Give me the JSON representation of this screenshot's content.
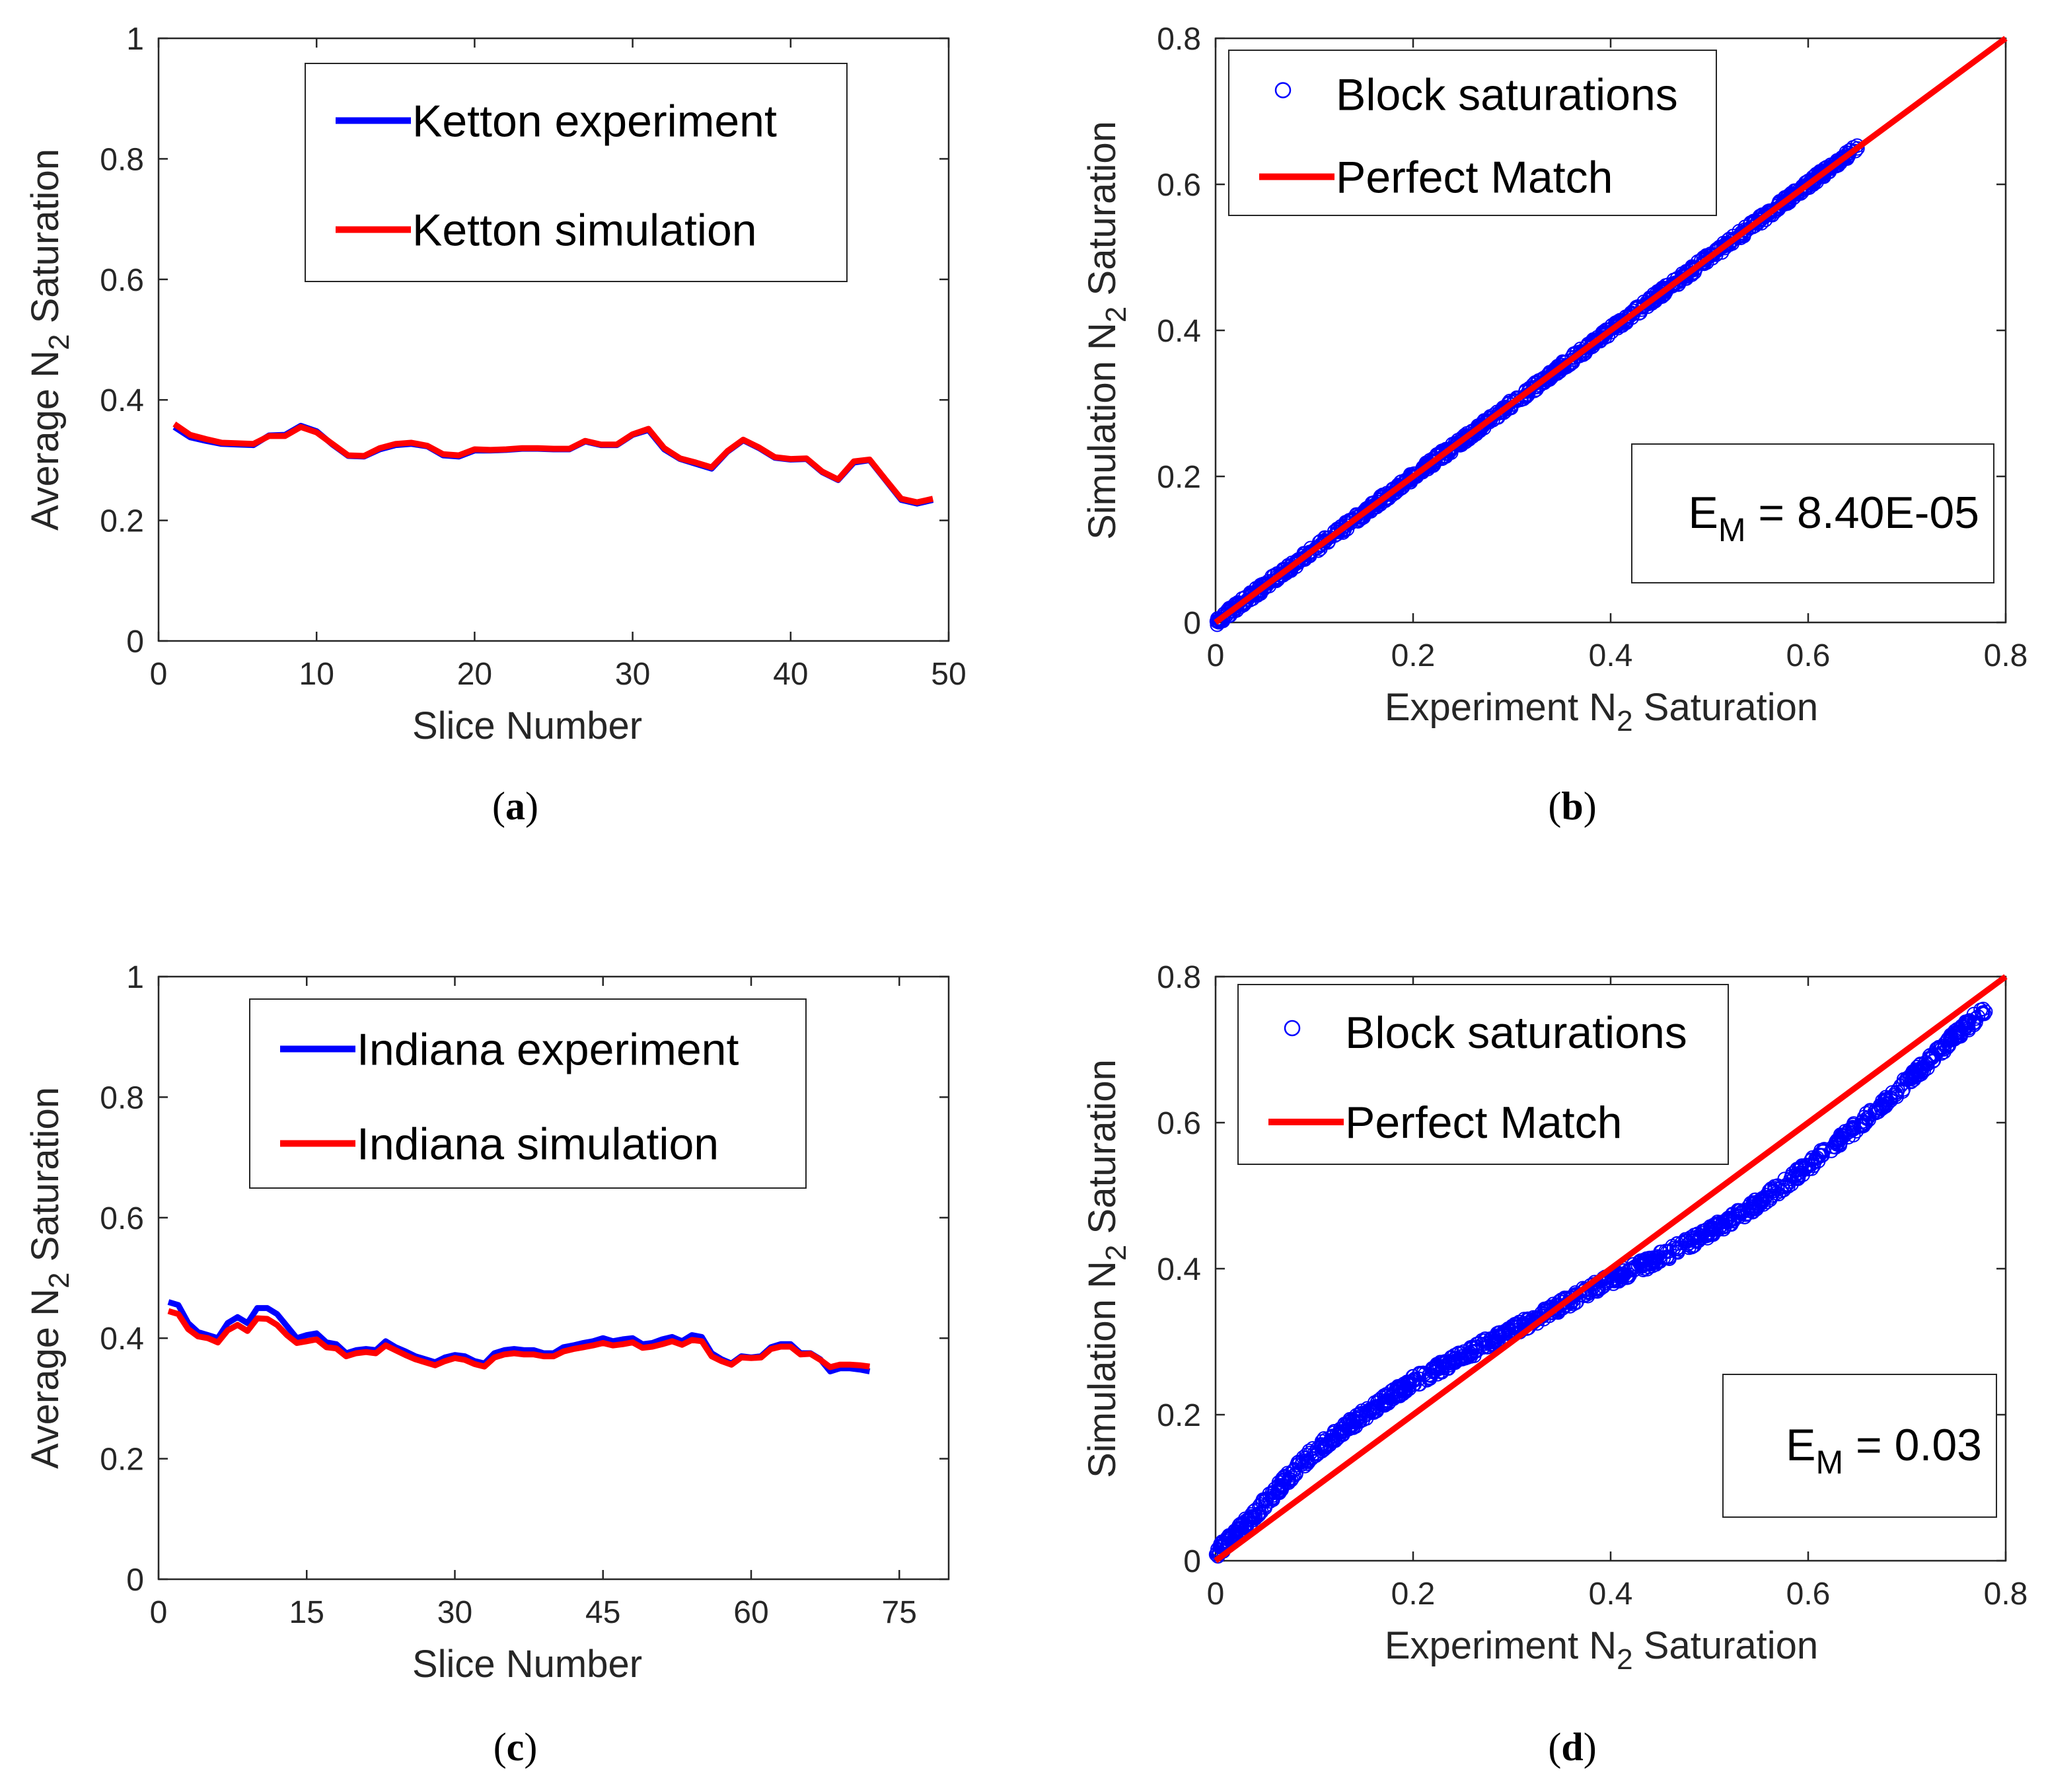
{
  "colors": {
    "experiment": "#0000ff",
    "simulation": "#ff0000",
    "axis": "#262626",
    "grid": "#bfbfbf"
  },
  "chart_data": [
    {
      "id": "a",
      "type": "line",
      "caption": "a",
      "xlabel": "Slice Number",
      "ylabel_prefix": "Average N",
      "ylabel_sub": "2",
      "ylabel_suffix": " Saturation",
      "xlim": [
        0,
        50
      ],
      "ylim": [
        0,
        1
      ],
      "xticks": [
        0,
        10,
        20,
        30,
        40,
        50
      ],
      "xtick_labels": [
        "0",
        "10",
        "20",
        "30",
        "40",
        "50"
      ],
      "yticks": [
        0,
        0.2,
        0.4,
        0.6,
        0.8,
        1
      ],
      "ytick_labels": [
        "0",
        "0.2",
        "0.4",
        "0.6",
        "0.8",
        "1"
      ],
      "legend_position": "top-center",
      "legend": [
        "Ketton experiment",
        "Ketton simulation"
      ],
      "x": [
        1,
        2,
        3,
        4,
        5,
        6,
        7,
        8,
        9,
        10,
        11,
        12,
        13,
        14,
        15,
        16,
        17,
        18,
        19,
        20,
        21,
        22,
        23,
        24,
        25,
        26,
        27,
        28,
        29,
        30,
        31,
        32,
        33,
        34,
        35,
        36,
        37,
        38,
        39,
        40,
        41,
        42,
        43,
        44,
        45,
        46,
        47,
        48,
        49
      ],
      "series": [
        {
          "name": "Ketton experiment",
          "values": [
            0.355,
            0.338,
            0.332,
            0.327,
            0.326,
            0.325,
            0.341,
            0.342,
            0.357,
            0.348,
            0.326,
            0.307,
            0.306,
            0.318,
            0.325,
            0.327,
            0.323,
            0.308,
            0.306,
            0.316,
            0.316,
            0.317,
            0.319,
            0.319,
            0.318,
            0.318,
            0.331,
            0.325,
            0.325,
            0.342,
            0.35,
            0.318,
            0.302,
            0.294,
            0.286,
            0.314,
            0.333,
            0.32,
            0.304,
            0.301,
            0.302,
            0.28,
            0.267,
            0.296,
            0.3,
            0.267,
            0.234,
            0.228,
            0.234
          ]
        },
        {
          "name": "Ketton simulation",
          "values": [
            0.36,
            0.342,
            0.335,
            0.329,
            0.328,
            0.327,
            0.34,
            0.34,
            0.355,
            0.346,
            0.327,
            0.308,
            0.307,
            0.32,
            0.327,
            0.329,
            0.324,
            0.31,
            0.308,
            0.318,
            0.317,
            0.318,
            0.32,
            0.32,
            0.319,
            0.319,
            0.332,
            0.326,
            0.326,
            0.343,
            0.352,
            0.32,
            0.303,
            0.296,
            0.288,
            0.315,
            0.334,
            0.321,
            0.305,
            0.302,
            0.303,
            0.281,
            0.268,
            0.298,
            0.301,
            0.268,
            0.236,
            0.23,
            0.236
          ]
        }
      ]
    },
    {
      "id": "b",
      "type": "scatter",
      "caption": "b",
      "xlabel_prefix": "Experiment N",
      "xlabel_sub": "2",
      "xlabel_suffix": " Saturation",
      "ylabel_prefix": "Simulation N",
      "ylabel_sub": "2",
      "ylabel_suffix": " Saturation",
      "xlim": [
        0,
        0.8
      ],
      "ylim": [
        0,
        0.8
      ],
      "xticks": [
        0,
        0.2,
        0.4,
        0.6,
        0.8
      ],
      "xtick_labels": [
        "0",
        "0.2",
        "0.4",
        "0.6",
        "0.8"
      ],
      "yticks": [
        0,
        0.2,
        0.4,
        0.6,
        0.8
      ],
      "ytick_labels": [
        "0",
        "0.2",
        "0.4",
        "0.6",
        "0.8"
      ],
      "legend_position": "top-left",
      "legend": [
        "Block saturations",
        "Perfect Match"
      ],
      "metric": {
        "symbol": "E",
        "sub": "M",
        "text": " = 8.40E-05"
      },
      "perfect_line": [
        [
          0,
          0
        ],
        [
          0.8,
          0.8
        ]
      ],
      "scatter_model": {
        "x_range": [
          0.0,
          0.65
        ],
        "relation": "y = x",
        "spread": 0.006
      }
    },
    {
      "id": "c",
      "type": "line",
      "caption": "c",
      "xlabel": "Slice Number",
      "ylabel_prefix": "Average N",
      "ylabel_sub": "2",
      "ylabel_suffix": " Saturation",
      "xlim": [
        0,
        80
      ],
      "ylim": [
        0,
        1
      ],
      "xticks": [
        0,
        15,
        30,
        45,
        60,
        75
      ],
      "xtick_labels": [
        "0",
        "15",
        "30",
        "45",
        "60",
        "75"
      ],
      "yticks": [
        0,
        0.2,
        0.4,
        0.6,
        0.8,
        1
      ],
      "ytick_labels": [
        "0",
        "0.2",
        "0.4",
        "0.6",
        "0.8",
        "1"
      ],
      "legend_position": "top-center",
      "legend": [
        "Indiana experiment",
        "Indiana simulation"
      ],
      "x": [
        1,
        2,
        3,
        4,
        5,
        6,
        7,
        8,
        9,
        10,
        11,
        12,
        13,
        14,
        15,
        16,
        17,
        18,
        19,
        20,
        21,
        22,
        23,
        24,
        25,
        26,
        27,
        28,
        29,
        30,
        31,
        32,
        33,
        34,
        35,
        36,
        37,
        38,
        39,
        40,
        41,
        42,
        43,
        44,
        45,
        46,
        47,
        48,
        49,
        50,
        51,
        52,
        53,
        54,
        55,
        56,
        57,
        58,
        59,
        60,
        61,
        62,
        63,
        64,
        65,
        66,
        67,
        68,
        69,
        70,
        71,
        72
      ],
      "series": [
        {
          "name": "Indiana experiment",
          "values": [
            0.46,
            0.455,
            0.425,
            0.41,
            0.405,
            0.4,
            0.425,
            0.435,
            0.425,
            0.45,
            0.45,
            0.44,
            0.42,
            0.4,
            0.405,
            0.408,
            0.393,
            0.39,
            0.375,
            0.38,
            0.382,
            0.38,
            0.395,
            0.385,
            0.378,
            0.37,
            0.365,
            0.36,
            0.368,
            0.372,
            0.37,
            0.362,
            0.358,
            0.375,
            0.38,
            0.382,
            0.38,
            0.38,
            0.375,
            0.375,
            0.385,
            0.388,
            0.392,
            0.395,
            0.4,
            0.395,
            0.398,
            0.4,
            0.39,
            0.392,
            0.398,
            0.402,
            0.395,
            0.405,
            0.402,
            0.375,
            0.365,
            0.358,
            0.37,
            0.368,
            0.37,
            0.385,
            0.39,
            0.39,
            0.375,
            0.375,
            0.365,
            0.345,
            0.35,
            0.35,
            0.348,
            0.345
          ]
        },
        {
          "name": "Indiana simulation",
          "values": [
            0.445,
            0.44,
            0.415,
            0.403,
            0.4,
            0.393,
            0.413,
            0.422,
            0.412,
            0.433,
            0.432,
            0.422,
            0.405,
            0.392,
            0.395,
            0.398,
            0.385,
            0.383,
            0.37,
            0.375,
            0.377,
            0.375,
            0.388,
            0.38,
            0.372,
            0.365,
            0.36,
            0.355,
            0.362,
            0.367,
            0.364,
            0.357,
            0.353,
            0.368,
            0.373,
            0.375,
            0.373,
            0.373,
            0.37,
            0.37,
            0.378,
            0.382,
            0.385,
            0.388,
            0.392,
            0.388,
            0.39,
            0.393,
            0.384,
            0.386,
            0.39,
            0.395,
            0.389,
            0.397,
            0.395,
            0.37,
            0.362,
            0.356,
            0.368,
            0.367,
            0.368,
            0.382,
            0.386,
            0.386,
            0.373,
            0.374,
            0.364,
            0.352,
            0.356,
            0.356,
            0.355,
            0.353
          ]
        }
      ]
    },
    {
      "id": "d",
      "type": "scatter",
      "caption": "d",
      "xlabel_prefix": "Experiment N",
      "xlabel_sub": "2",
      "xlabel_suffix": " Saturation",
      "ylabel_prefix": "Simulation N",
      "ylabel_sub": "2",
      "ylabel_suffix": " Saturation",
      "xlim": [
        0,
        0.8
      ],
      "ylim": [
        0,
        0.8
      ],
      "xticks": [
        0,
        0.2,
        0.4,
        0.6,
        0.8
      ],
      "xtick_labels": [
        "0",
        "0.2",
        "0.4",
        "0.6",
        "0.8"
      ],
      "yticks": [
        0,
        0.2,
        0.4,
        0.6,
        0.8
      ],
      "ytick_labels": [
        "0",
        "0.2",
        "0.4",
        "0.6",
        "0.8"
      ],
      "legend_position": "top-left",
      "legend": [
        "Block saturations",
        "Perfect Match"
      ],
      "metric": {
        "symbol": "E",
        "sub": "M",
        "text": " = 0.03"
      },
      "perfect_line": [
        [
          0,
          0
        ],
        [
          0.8,
          0.8
        ]
      ],
      "scatter_curve": {
        "x": [
          0.0,
          0.02,
          0.05,
          0.1,
          0.15,
          0.2,
          0.25,
          0.3,
          0.35,
          0.4,
          0.45,
          0.5,
          0.55,
          0.6,
          0.65,
          0.7,
          0.75,
          0.78
        ],
        "y": [
          0.01,
          0.035,
          0.08,
          0.15,
          0.2,
          0.245,
          0.28,
          0.315,
          0.35,
          0.385,
          0.415,
          0.45,
          0.49,
          0.54,
          0.595,
          0.655,
          0.72,
          0.755
        ],
        "spread": 0.008
      }
    }
  ]
}
